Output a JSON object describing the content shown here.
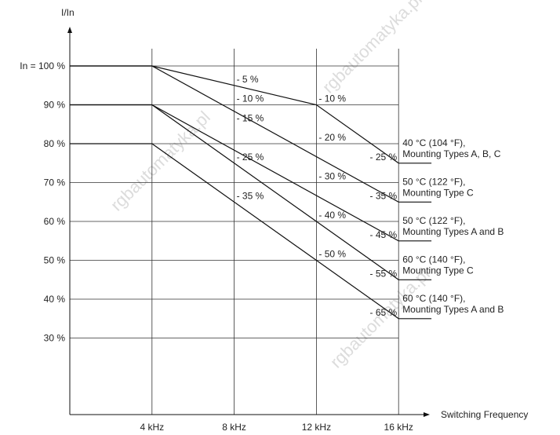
{
  "chart_data": {
    "type": "line",
    "ylabel": "I/In",
    "xlabel": "Switching Frequency",
    "x_ticks": [
      {
        "value": 4,
        "label": "4 kHz"
      },
      {
        "value": 8,
        "label": "8 kHz"
      },
      {
        "value": 12,
        "label": "12 kHz"
      },
      {
        "value": 16,
        "label": "16 kHz"
      }
    ],
    "y_ticks": [
      {
        "value": 100,
        "label": "In = 100 %"
      },
      {
        "value": 90,
        "label": "90 %"
      },
      {
        "value": 80,
        "label": "80 %"
      },
      {
        "value": 70,
        "label": "70 %"
      },
      {
        "value": 60,
        "label": "60 %"
      },
      {
        "value": 50,
        "label": "50 %"
      },
      {
        "value": 40,
        "label": "40 %"
      },
      {
        "value": 30,
        "label": "30 %"
      }
    ],
    "xlim": [
      0,
      16
    ],
    "ylim": [
      0,
      100
    ],
    "grid": true,
    "series": [
      {
        "name": "40 °C (104 °F),\nMounting Types A, B, C",
        "x": [
          0,
          4,
          12,
          16,
          17.6
        ],
        "y": [
          100,
          100,
          90,
          75,
          75
        ]
      },
      {
        "name": "50 °C (122 °F),\nMounting Type C",
        "x": [
          0,
          4,
          16,
          17.6
        ],
        "y": [
          100,
          100,
          65,
          65
        ]
      },
      {
        "name": "50 °C (122 °F),\nMounting Types A and B",
        "x": [
          0,
          4,
          16,
          17.6
        ],
        "y": [
          90,
          90,
          55,
          55
        ]
      },
      {
        "name": "60 °C (140 °F),\nMounting Type C",
        "x": [
          0,
          4,
          16,
          17.6
        ],
        "y": [
          90,
          90,
          45,
          45
        ]
      },
      {
        "name": "60 °C (140 °F),\nMounting Types A and B",
        "x": [
          0,
          4,
          16,
          17.6
        ],
        "y": [
          80,
          80,
          35,
          35
        ]
      }
    ],
    "annotations": [
      {
        "text": "- 5 %",
        "x": 8,
        "y": 95
      },
      {
        "text": "- 10 %",
        "x": 8,
        "y": 90
      },
      {
        "text": "- 15 %",
        "x": 8,
        "y": 85
      },
      {
        "text": "- 25 %",
        "x": 8,
        "y": 75
      },
      {
        "text": "- 35 %",
        "x": 8,
        "y": 65
      },
      {
        "text": "- 10 %",
        "x": 12,
        "y": 90
      },
      {
        "text": "- 20 %",
        "x": 12,
        "y": 80
      },
      {
        "text": "- 30 %",
        "x": 12,
        "y": 70
      },
      {
        "text": "- 40 %",
        "x": 12,
        "y": 60
      },
      {
        "text": "- 50 %",
        "x": 12,
        "y": 50
      },
      {
        "text": "- 25 %",
        "x": 16,
        "y": 75
      },
      {
        "text": "- 35 %",
        "x": 16,
        "y": 65
      },
      {
        "text": "- 45 %",
        "x": 16,
        "y": 55
      },
      {
        "text": "- 55 %",
        "x": 16,
        "y": 45
      },
      {
        "text": "- 65 %",
        "x": 16,
        "y": 35
      }
    ]
  }
}
